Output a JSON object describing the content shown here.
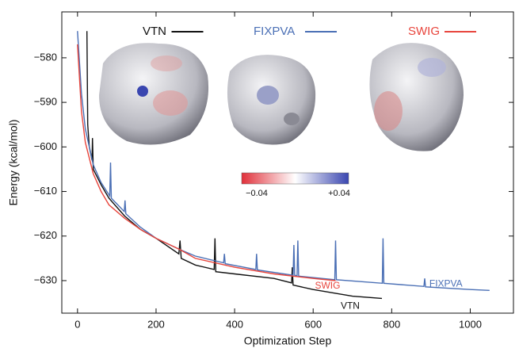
{
  "chart_data": {
    "type": "line",
    "xlabel": "Optimization Step",
    "ylabel": "Energy (kcal/mol)",
    "xlim": [
      -40,
      1110
    ],
    "ylim": [
      -637.3,
      -569.7
    ],
    "xticks": [
      0,
      200,
      400,
      600,
      800,
      1000
    ],
    "yticks": [
      {
        "value": -580,
        "label": "−580"
      },
      {
        "value": -590,
        "label": "−590"
      },
      {
        "value": -600,
        "label": "−600"
      },
      {
        "value": -610,
        "label": "−610"
      },
      {
        "value": -620,
        "label": "−620"
      },
      {
        "value": -630,
        "label": "−630"
      }
    ],
    "series": [
      {
        "name": "VTN",
        "color": "#111111",
        "x": [
          24,
          26,
          30,
          37,
          38,
          40,
          60,
          80,
          120,
          160,
          200,
          258,
          261,
          264,
          300,
          348,
          350,
          352,
          400,
          500,
          545,
          547,
          549,
          600,
          700,
          775
        ],
        "values": [
          -574,
          -595,
          -600,
          -603,
          -598,
          -605,
          -608.5,
          -611.5,
          -615.5,
          -618.5,
          -620.5,
          -624,
          -621,
          -625,
          -626.5,
          -627.5,
          -620.5,
          -628,
          -628.5,
          -629.5,
          -630.5,
          -627,
          -631,
          -632,
          -633.5,
          -634
        ]
      },
      {
        "name": "FIXPVA",
        "color": "#4a6fb5",
        "x": [
          0,
          10,
          20,
          40,
          60,
          82,
          84,
          86,
          119,
          121,
          123,
          160,
          200,
          260,
          300,
          372,
          374,
          376,
          454,
          456,
          458,
          549,
          551,
          553,
          559,
          561,
          563,
          655,
          657,
          659,
          776,
          778,
          780,
          882,
          884,
          886,
          1000,
          1049
        ],
        "values": [
          -574,
          -588,
          -596,
          -604,
          -608,
          -611,
          -603.5,
          -611.5,
          -614.5,
          -612,
          -615,
          -618,
          -620.5,
          -623,
          -624.5,
          -626,
          -624,
          -626.2,
          -627.5,
          -624,
          -627.6,
          -628.8,
          -622,
          -628.8,
          -628.9,
          -621,
          -629,
          -629.8,
          -621,
          -629.8,
          -630.6,
          -620.5,
          -630.6,
          -631.3,
          -629.5,
          -631.4,
          -632,
          -632.2
        ]
      },
      {
        "name": "SWIG",
        "color": "#e8453c",
        "x": [
          0,
          10,
          20,
          40,
          60,
          80,
          120,
          160,
          200,
          260,
          300,
          400,
          500,
          600,
          657
        ],
        "values": [
          -577,
          -592,
          -599,
          -606,
          -610,
          -613,
          -616,
          -618.5,
          -620.5,
          -623,
          -625,
          -627,
          -628.5,
          -629.5,
          -630
        ]
      }
    ],
    "colorbar": {
      "labels": [
        "−0.04",
        "+0.04"
      ],
      "colors": [
        "#e0303a",
        "#ffffff",
        "#3a46b0"
      ]
    }
  }
}
